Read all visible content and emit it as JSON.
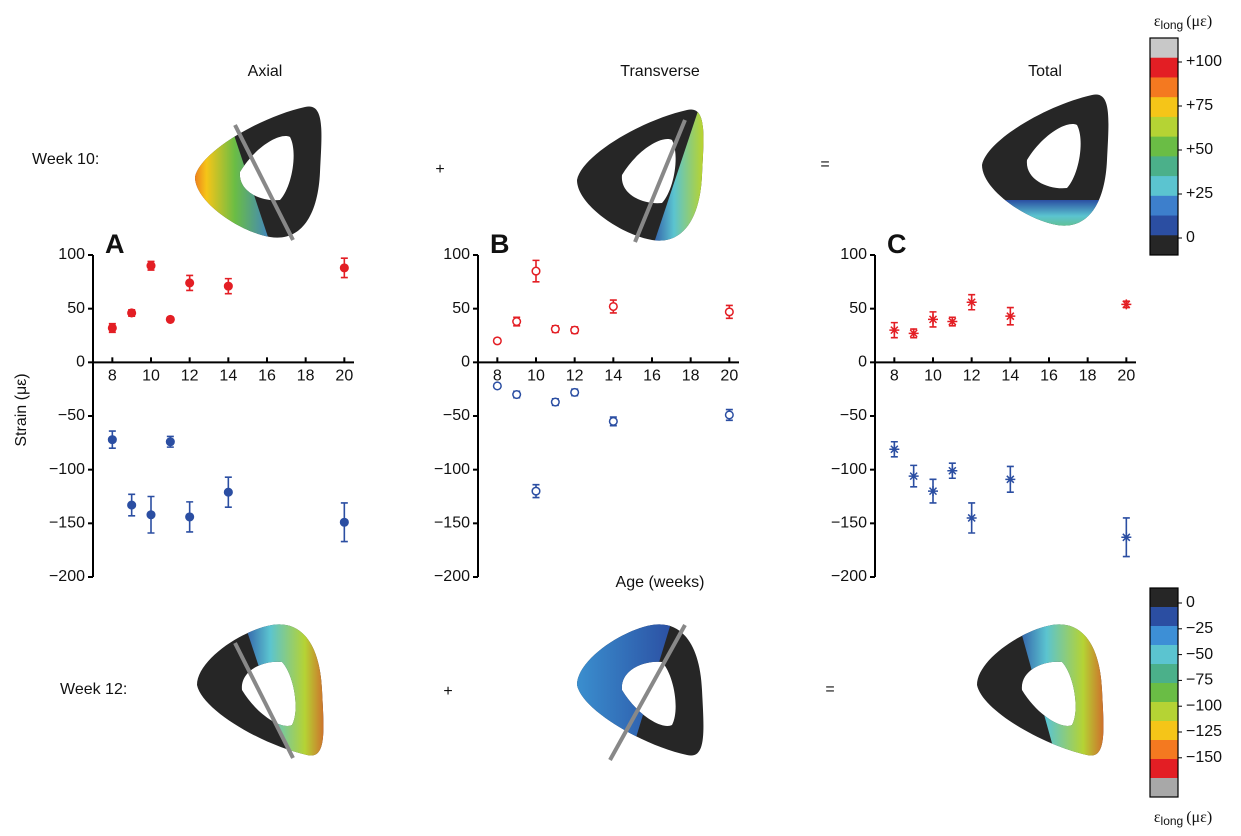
{
  "chart_data": [
    {
      "type": "scatter",
      "panel": "A",
      "title": "Axial",
      "y_label": "Strain (με)",
      "x": [
        8,
        9,
        10,
        11,
        12,
        14,
        20
      ],
      "series": [
        {
          "color": "#e31e24",
          "marker": "filled-circle",
          "values": [
            32,
            46,
            90,
            40,
            74,
            71,
            88
          ],
          "errors": [
            4,
            3,
            4,
            2,
            7,
            7,
            9
          ]
        },
        {
          "color": "#2b4ea2",
          "marker": "filled-circle",
          "values": [
            -72,
            -133,
            -142,
            -74,
            -144,
            -121,
            -149
          ],
          "errors": [
            8,
            10,
            17,
            5,
            14,
            14,
            18
          ]
        }
      ],
      "xlim": [
        7,
        20.5
      ],
      "ylim": [
        -200,
        100
      ],
      "xticks": [
        8,
        10,
        12,
        14,
        16,
        18,
        20
      ],
      "yticks": [
        {
          "value": -200,
          "label": "−200"
        },
        {
          "value": -150,
          "label": "−150"
        },
        {
          "value": -100,
          "label": "−100"
        },
        {
          "value": -50,
          "label": "−50"
        },
        0,
        50,
        100
      ]
    },
    {
      "type": "scatter",
      "panel": "B",
      "title": "Transverse",
      "x_label": "Age (weeks)",
      "x": [
        8,
        9,
        10,
        11,
        12,
        14,
        20
      ],
      "series": [
        {
          "color": "#e31e24",
          "marker": "open-circle",
          "values": [
            20,
            38,
            85,
            31,
            30,
            52,
            47
          ],
          "errors": [
            2,
            4,
            10,
            3,
            3,
            6,
            6
          ]
        },
        {
          "color": "#2b4ea2",
          "marker": "open-circle",
          "values": [
            -22,
            -30,
            -120,
            -37,
            -28,
            -55,
            -49
          ],
          "errors": [
            2,
            3,
            6,
            3,
            3,
            4,
            5
          ]
        }
      ],
      "xlim": [
        7,
        20.5
      ],
      "ylim": [
        -200,
        100
      ],
      "xticks": [
        8,
        10,
        12,
        14,
        16,
        18,
        20
      ],
      "yticks": [
        {
          "value": -200,
          "label": "−200"
        },
        {
          "value": -150,
          "label": "−150"
        },
        {
          "value": -100,
          "label": "−100"
        },
        {
          "value": -50,
          "label": "−50"
        },
        0,
        50,
        100
      ]
    },
    {
      "type": "scatter",
      "panel": "C",
      "title": "Total",
      "x": [
        8,
        9,
        10,
        11,
        12,
        14,
        20
      ],
      "series": [
        {
          "color": "#e31e24",
          "marker": "star",
          "values": [
            30,
            27,
            40,
            38,
            56,
            43,
            54
          ],
          "errors": [
            7,
            4,
            7,
            4,
            7,
            8,
            3
          ]
        },
        {
          "color": "#2b4ea2",
          "marker": "star",
          "values": [
            -81,
            -106,
            -120,
            -101,
            -145,
            -109,
            -163
          ],
          "errors": [
            7,
            10,
            11,
            7,
            14,
            12,
            18
          ]
        }
      ],
      "xlim": [
        7,
        20.5
      ],
      "ylim": [
        -200,
        100
      ],
      "xticks": [
        8,
        10,
        12,
        14,
        16,
        18,
        20
      ],
      "yticks": [
        {
          "value": -200,
          "label": "−200"
        },
        {
          "value": -150,
          "label": "−150"
        },
        {
          "value": -100,
          "label": "−100"
        },
        {
          "value": -50,
          "label": "−50"
        },
        0,
        50,
        100
      ]
    }
  ],
  "rows": [
    "Week 10:",
    "Week 12:"
  ],
  "operators": [
    "+",
    "=",
    "+",
    "="
  ],
  "colorbars": [
    {
      "title": {
        "symbol": "ε",
        "subscript": "long",
        "unit": "(με)"
      },
      "colors": [
        "#c8c8c8",
        "#e31e24",
        "#f47920",
        "#f5c518",
        "#b5d334",
        "#6abd45",
        "#4bb08a",
        "#5bc4d0",
        "#3d7fcc",
        "#2b4ea2",
        "#262626"
      ],
      "ticks": [
        {
          "value": 100,
          "label": "+100"
        },
        {
          "value": 75,
          "label": "+75"
        },
        {
          "value": 50,
          "label": "+50"
        },
        {
          "value": 25,
          "label": "+25"
        },
        0
      ]
    },
    {
      "title": {
        "symbol": "ε",
        "subscript": "long",
        "unit": "(με)"
      },
      "colors": [
        "#262626",
        "#2b4ea2",
        "#3d8fd6",
        "#5bc4d0",
        "#4bb08a",
        "#6abd45",
        "#b5d334",
        "#f5c518",
        "#f47920",
        "#e31e24",
        "#a8a8a8"
      ],
      "ticks": [
        0,
        {
          "value": -25,
          "label": "−25"
        },
        {
          "value": -50,
          "label": "−50"
        },
        {
          "value": -75,
          "label": "−75"
        },
        {
          "value": -100,
          "label": "−100"
        },
        {
          "value": -125,
          "label": "−125"
        },
        {
          "value": -150,
          "label": "−150"
        }
      ]
    }
  ]
}
